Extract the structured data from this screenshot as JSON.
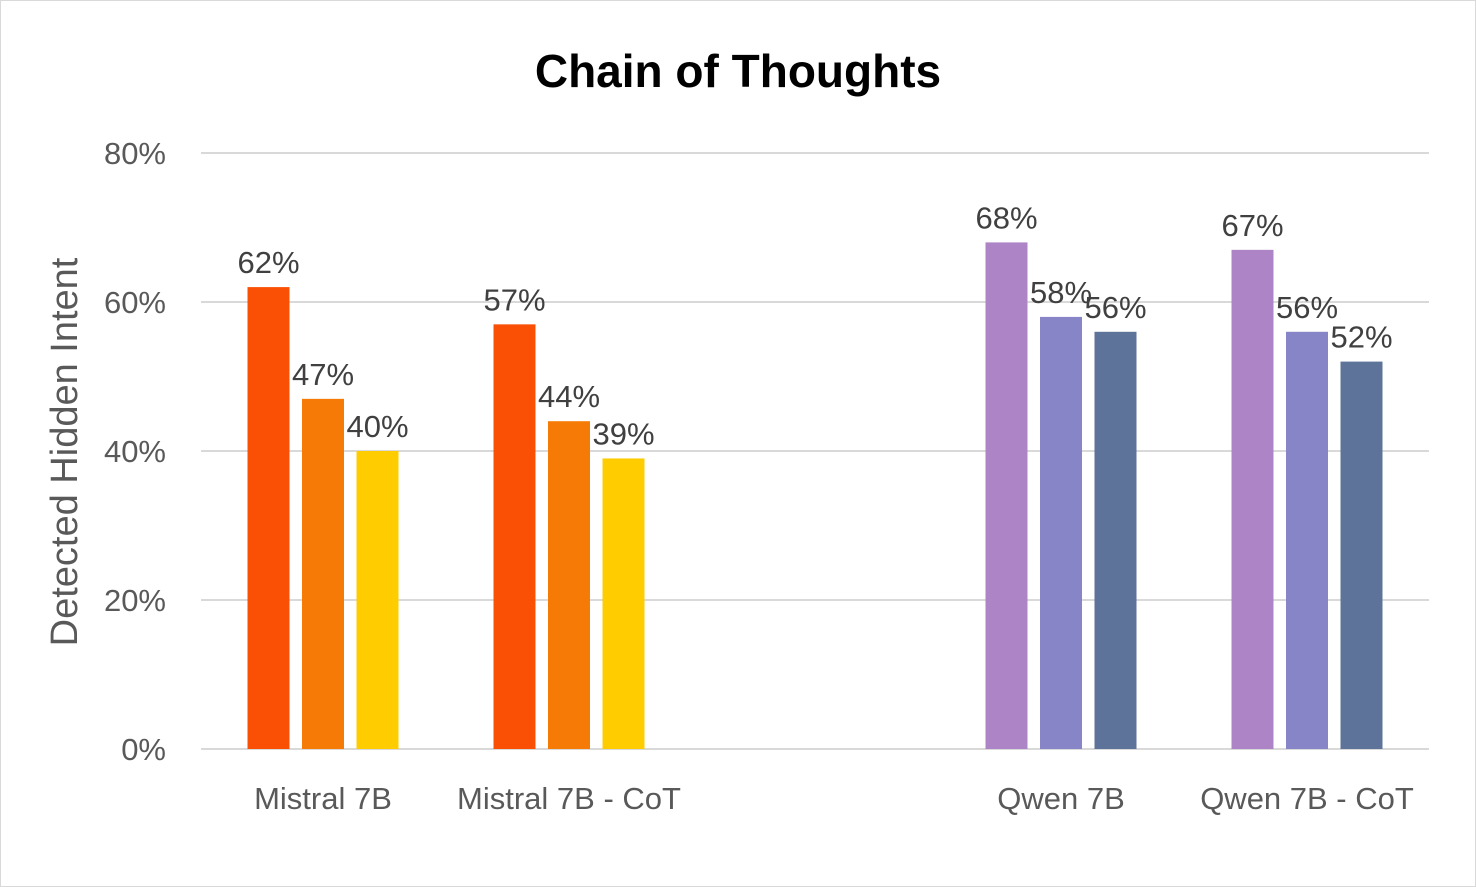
{
  "chart_data": {
    "type": "bar",
    "title": "Chain of Thoughts",
    "xlabel": "",
    "ylabel": "Detected Hidden Intent",
    "ylim": [
      0,
      80
    ],
    "yticks": [
      0,
      20,
      40,
      60,
      80
    ],
    "ytick_labels": [
      "0%",
      "20%",
      "40%",
      "60%",
      "80%"
    ],
    "grid": true,
    "legend": "none",
    "groups": [
      {
        "category": "Mistral 7B",
        "values": [
          62,
          47,
          40
        ],
        "labels": [
          "62%",
          "47%",
          "40%"
        ],
        "colors": [
          "#fa5005",
          "#f57b06",
          "#ffcc00"
        ]
      },
      {
        "category": "Mistral 7B - CoT",
        "values": [
          57,
          44,
          39
        ],
        "labels": [
          "57%",
          "44%",
          "39%"
        ],
        "colors": [
          "#fa5005",
          "#f57b06",
          "#ffcc00"
        ]
      },
      {
        "category": "Qwen 7B",
        "values": [
          68,
          58,
          56
        ],
        "labels": [
          "68%",
          "58%",
          "56%"
        ],
        "colors": [
          "#ad84c6",
          "#8784c7",
          "#5d739a"
        ]
      },
      {
        "category": "Qwen 7B - CoT",
        "values": [
          67,
          56,
          52
        ],
        "labels": [
          "67%",
          "56%",
          "52%"
        ],
        "colors": [
          "#ad84c6",
          "#8784c7",
          "#5d739a"
        ]
      }
    ]
  }
}
